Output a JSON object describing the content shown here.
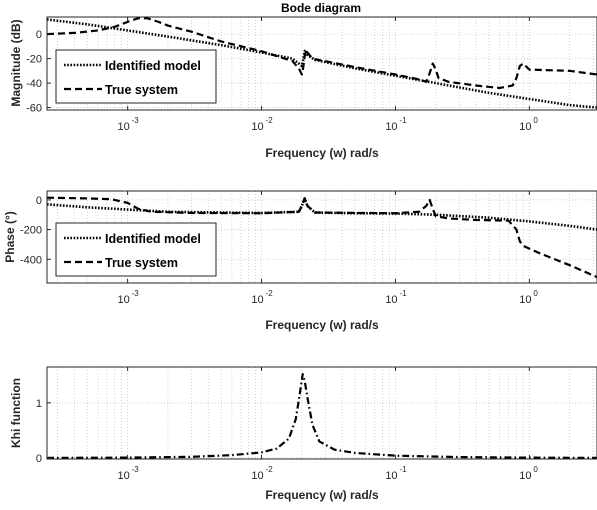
{
  "figure_title": "Bode diagram",
  "chart_data": [
    {
      "type": "line",
      "title": "Bode diagram",
      "xlabel": "Frequency (w) rad/s",
      "ylabel": "Magnitude (dB)",
      "xscale": "log",
      "xlim": [
        0.00025,
        3.2
      ],
      "ylim": [
        -62,
        14
      ],
      "xticks": [
        "10",
        "10",
        "10",
        "10"
      ],
      "xtick_exponents": [
        "-3",
        "-2",
        "-1",
        "0"
      ],
      "xtick_values": [
        0.001,
        0.01,
        0.1,
        1
      ],
      "yticks": [
        "0",
        "-20",
        "-40",
        "-60"
      ],
      "ytick_values": [
        0,
        -20,
        -40,
        -60
      ],
      "grid": true,
      "legend_position": "bottom-left",
      "series": [
        {
          "name": "Identified model",
          "style": "dotted",
          "points": [
            [
              0.00025,
              12
            ],
            [
              0.0005,
              8
            ],
            [
              0.001,
              3
            ],
            [
              0.002,
              -2
            ],
            [
              0.005,
              -9
            ],
            [
              0.01,
              -15
            ],
            [
              0.017,
              -20
            ],
            [
              0.019,
              -24
            ],
            [
              0.02,
              -26
            ],
            [
              0.0205,
              -21
            ],
            [
              0.021,
              -14
            ],
            [
              0.0215,
              -13
            ],
            [
              0.022,
              -17
            ],
            [
              0.025,
              -21
            ],
            [
              0.05,
              -28
            ],
            [
              0.1,
              -34
            ],
            [
              0.2,
              -40
            ],
            [
              0.5,
              -48
            ],
            [
              1,
              -53
            ],
            [
              2,
              -58
            ],
            [
              3.2,
              -60
            ]
          ]
        },
        {
          "name": "True system",
          "style": "dashed",
          "points": [
            [
              0.00025,
              0
            ],
            [
              0.0004,
              1
            ],
            [
              0.0006,
              3
            ],
            [
              0.0008,
              6
            ],
            [
              0.001,
              10
            ],
            [
              0.0012,
              13
            ],
            [
              0.0014,
              13
            ],
            [
              0.0017,
              10
            ],
            [
              0.002,
              7
            ],
            [
              0.003,
              2
            ],
            [
              0.005,
              -6
            ],
            [
              0.01,
              -14
            ],
            [
              0.017,
              -22
            ],
            [
              0.019,
              -28
            ],
            [
              0.02,
              -33
            ],
            [
              0.0205,
              -27
            ],
            [
              0.021,
              -18
            ],
            [
              0.0215,
              -13
            ],
            [
              0.022,
              -15
            ],
            [
              0.024,
              -20
            ],
            [
              0.05,
              -27
            ],
            [
              0.1,
              -33
            ],
            [
              0.15,
              -37
            ],
            [
              0.17,
              -39
            ],
            [
              0.18,
              -32
            ],
            [
              0.19,
              -24
            ],
            [
              0.2,
              -29
            ],
            [
              0.21,
              -36
            ],
            [
              0.25,
              -39
            ],
            [
              0.4,
              -42
            ],
            [
              0.6,
              -44
            ],
            [
              0.75,
              -42
            ],
            [
              0.8,
              -36
            ],
            [
              0.85,
              -26
            ],
            [
              0.9,
              -24
            ],
            [
              1,
              -29
            ],
            [
              2,
              -30
            ],
            [
              3.2,
              -33
            ]
          ]
        }
      ]
    },
    {
      "type": "line",
      "title": "",
      "xlabel": "Frequency (w) rad/s",
      "ylabel": "Phase (°)",
      "xscale": "log",
      "xlim": [
        0.00025,
        3.2
      ],
      "ylim": [
        -560,
        60
      ],
      "xticks": [
        "10",
        "10",
        "10",
        "10"
      ],
      "xtick_exponents": [
        "-3",
        "-2",
        "-1",
        "0"
      ],
      "xtick_values": [
        0.001,
        0.01,
        0.1,
        1
      ],
      "yticks": [
        "0",
        "-200",
        "-400"
      ],
      "ytick_values": [
        0,
        -200,
        -400
      ],
      "grid": true,
      "legend_position": "bottom-left",
      "series": [
        {
          "name": "Identified model",
          "style": "dotted",
          "points": [
            [
              0.00025,
              -30
            ],
            [
              0.0005,
              -50
            ],
            [
              0.001,
              -65
            ],
            [
              0.002,
              -80
            ],
            [
              0.005,
              -85
            ],
            [
              0.01,
              -88
            ],
            [
              0.019,
              -80
            ],
            [
              0.02,
              -40
            ],
            [
              0.021,
              10
            ],
            [
              0.022,
              -40
            ],
            [
              0.025,
              -85
            ],
            [
              0.05,
              -90
            ],
            [
              0.1,
              -92
            ],
            [
              0.2,
              -100
            ],
            [
              0.5,
              -120
            ],
            [
              1,
              -145
            ],
            [
              2,
              -175
            ],
            [
              3.2,
              -200
            ]
          ]
        },
        {
          "name": "True system",
          "style": "dashed",
          "points": [
            [
              0.00025,
              15
            ],
            [
              0.0005,
              10
            ],
            [
              0.00075,
              5
            ],
            [
              0.001,
              -20
            ],
            [
              0.0012,
              -60
            ],
            [
              0.0015,
              -80
            ],
            [
              0.003,
              -88
            ],
            [
              0.01,
              -90
            ],
            [
              0.019,
              -80
            ],
            [
              0.02,
              -40
            ],
            [
              0.021,
              10
            ],
            [
              0.022,
              -40
            ],
            [
              0.025,
              -85
            ],
            [
              0.1,
              -90
            ],
            [
              0.15,
              -80
            ],
            [
              0.17,
              -40
            ],
            [
              0.18,
              0
            ],
            [
              0.19,
              -60
            ],
            [
              0.2,
              -110
            ],
            [
              0.25,
              -125
            ],
            [
              0.4,
              -135
            ],
            [
              0.7,
              -140
            ],
            [
              0.8,
              -200
            ],
            [
              0.85,
              -280
            ],
            [
              0.9,
              -310
            ],
            [
              1.2,
              -360
            ],
            [
              2,
              -440
            ],
            [
              3.2,
              -520
            ]
          ]
        }
      ]
    },
    {
      "type": "line",
      "title": "",
      "xlabel": "Frequency (w) rad/s",
      "ylabel": "Khi function",
      "xscale": "log",
      "xlim": [
        0.00025,
        3.2
      ],
      "ylim": [
        -0.02,
        1.65
      ],
      "xticks": [
        "10",
        "10",
        "10",
        "10"
      ],
      "xtick_exponents": [
        "-3",
        "-2",
        "-1",
        "0"
      ],
      "xtick_values": [
        0.001,
        0.01,
        0.1,
        1
      ],
      "yticks": [
        "0",
        "1"
      ],
      "ytick_values": [
        0,
        1
      ],
      "grid": true,
      "series": [
        {
          "style": "dashdot",
          "points": [
            [
              0.00025,
              0
            ],
            [
              0.001,
              0.005
            ],
            [
              0.003,
              0.02
            ],
            [
              0.006,
              0.05
            ],
            [
              0.01,
              0.1
            ],
            [
              0.013,
              0.17
            ],
            [
              0.016,
              0.35
            ],
            [
              0.018,
              0.7
            ],
            [
              0.019,
              1.05
            ],
            [
              0.0203,
              1.52
            ],
            [
              0.021,
              1.4
            ],
            [
              0.022,
              1.1
            ],
            [
              0.024,
              0.6
            ],
            [
              0.027,
              0.3
            ],
            [
              0.035,
              0.15
            ],
            [
              0.05,
              0.09
            ],
            [
              0.1,
              0.04
            ],
            [
              0.3,
              0.015
            ],
            [
              1,
              0.005
            ],
            [
              3.2,
              0
            ]
          ]
        }
      ]
    }
  ]
}
